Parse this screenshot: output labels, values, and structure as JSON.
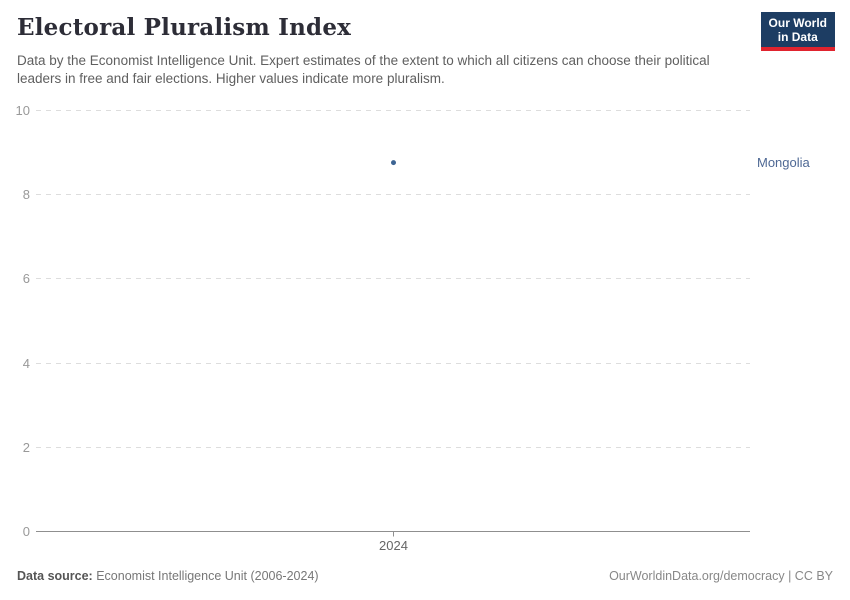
{
  "header": {
    "title": "Electoral Pluralism Index",
    "subtitle": "Data by the Economist Intelligence Unit. Expert estimates of the extent to which all citizens can choose their political leaders in free and fair elections. Higher values indicate more pluralism.",
    "logo": {
      "line1": "Our World",
      "line2": "in Data"
    }
  },
  "chart_data": {
    "type": "scatter",
    "title": "Electoral Pluralism Index",
    "series": [
      {
        "name": "Mongolia",
        "x": [
          2024
        ],
        "values": [
          8.75
        ]
      }
    ],
    "xlabel": "",
    "ylabel": "",
    "xticks": [
      2024
    ],
    "yticks": [
      0,
      2,
      4,
      6,
      8,
      10
    ],
    "ylim": [
      0,
      10
    ],
    "grid": "dashed-horizontal-gridlines",
    "legend_position": "label-right-of-plot"
  },
  "footer": {
    "source_label": "Data source:",
    "source_value": "Economist Intelligence Unit (2006-2024)",
    "attribution": "OurWorldinData.org/democracy | CC BY"
  },
  "colors": {
    "point": "#3d6493",
    "entity_label": "#4e6894",
    "logo_bg": "#1d3d63",
    "logo_bar": "#e0232e",
    "grid": "#dddddd",
    "axis": "#8f8f8f",
    "ytick_text": "#999999",
    "xtick_text": "#666666"
  }
}
